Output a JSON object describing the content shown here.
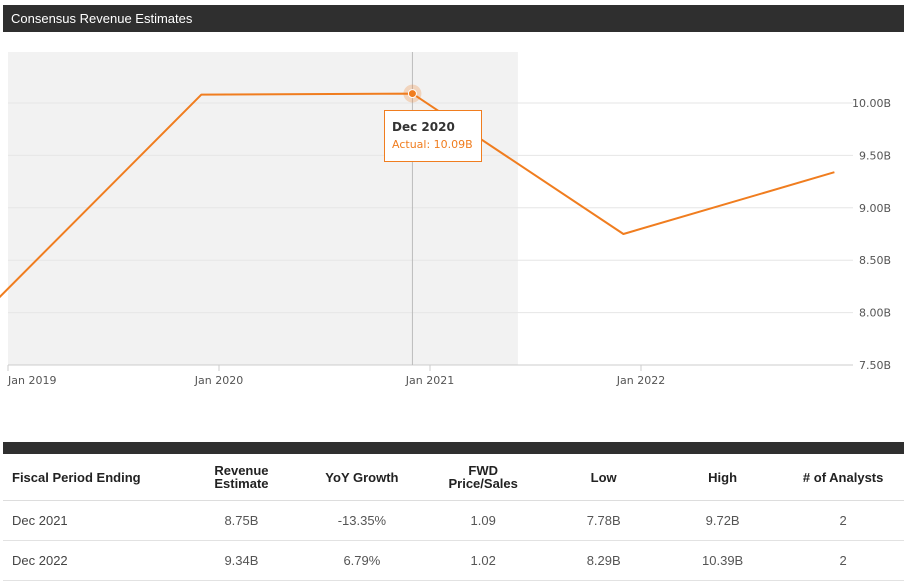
{
  "header": {
    "title": "Consensus Revenue Estimates"
  },
  "tooltip": {
    "period": "Dec 2020",
    "label": "Actual: 10.09B"
  },
  "chart_data": {
    "type": "line",
    "title": "Consensus Revenue Estimates",
    "x_tick_labels": [
      "Jan 2019",
      "Jan 2020",
      "Jan 2021",
      "Jan 2022"
    ],
    "y_tick_labels": [
      "7.50B",
      "8.00B",
      "8.50B",
      "9.00B",
      "9.50B",
      "10.00B"
    ],
    "ylim": [
      7.5,
      10.0
    ],
    "grid": true,
    "actual_region_end": "Jun 2021",
    "series": [
      {
        "color": "#f07d1f",
        "points": [
          {
            "x": "Dec 2018",
            "y": 8.06
          },
          {
            "x": "Dec 2019",
            "y": 10.08
          },
          {
            "x": "Dec 2020",
            "y": 10.09
          },
          {
            "x": "Dec 2021",
            "y": 8.75
          },
          {
            "x": "Dec 2022",
            "y": 9.34
          }
        ]
      }
    ],
    "highlight": {
      "x": "Dec 2020",
      "y": 10.09
    }
  },
  "table": {
    "headers": [
      "Fiscal Period Ending",
      "Revenue Estimate",
      "YoY Growth",
      "FWD Price/Sales",
      "Low",
      "High",
      "# of Analysts"
    ],
    "header_lines": [
      [
        "Fiscal Period Ending"
      ],
      [
        "Revenue",
        "Estimate"
      ],
      [
        "YoY Growth"
      ],
      [
        "FWD",
        "Price/Sales"
      ],
      [
        "Low"
      ],
      [
        "High"
      ],
      [
        "# of Analysts"
      ]
    ],
    "rows": [
      [
        "Dec 2021",
        "8.75B",
        "-13.35%",
        "1.09",
        "7.78B",
        "9.72B",
        "2"
      ],
      [
        "Dec 2022",
        "9.34B",
        "6.79%",
        "1.02",
        "8.29B",
        "10.39B",
        "2"
      ]
    ]
  },
  "colors": {
    "accent": "#f07d1f",
    "header_bg": "#2f2f2f",
    "shade": "#f2f2f2"
  }
}
